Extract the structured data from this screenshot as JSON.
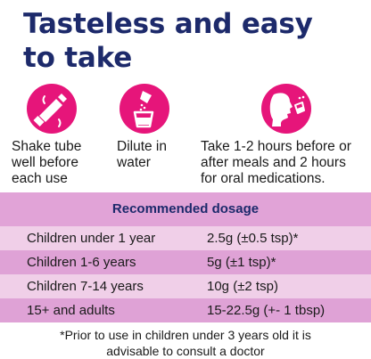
{
  "headline": {
    "line1": "Tasteless and easy",
    "line2": "to take"
  },
  "brand_color": "#e6157a",
  "heading_color": "#1d2a6b",
  "steps": [
    {
      "icon": "tube-icon",
      "caption_lines": [
        "Shake tube",
        "well before",
        "each use"
      ]
    },
    {
      "icon": "glass-sachet-icon",
      "caption_lines": [
        "Dilute in",
        "water"
      ]
    },
    {
      "icon": "drinking-person-icon",
      "caption_lines": [
        "Take 1-2 hours before or",
        "after meals and 2 hours",
        "for oral medications."
      ]
    }
  ],
  "dosage": {
    "title": "Recommended dosage",
    "rows": [
      {
        "age": "Children under 1 year",
        "amount": "2.5g (±0.5 tsp)*"
      },
      {
        "age": "Children 1-6 years",
        "amount": "5g (±1 tsp)*"
      },
      {
        "age": "Children 7-14 years",
        "amount": "10g (±2 tsp)"
      },
      {
        "age": "15+ and adults",
        "amount": "15-22.5g (+- 1 tbsp)"
      }
    ]
  },
  "footnote": {
    "line1": "*Prior to use in children under 3 years old it is",
    "line2": "advisable to consult a doctor"
  }
}
